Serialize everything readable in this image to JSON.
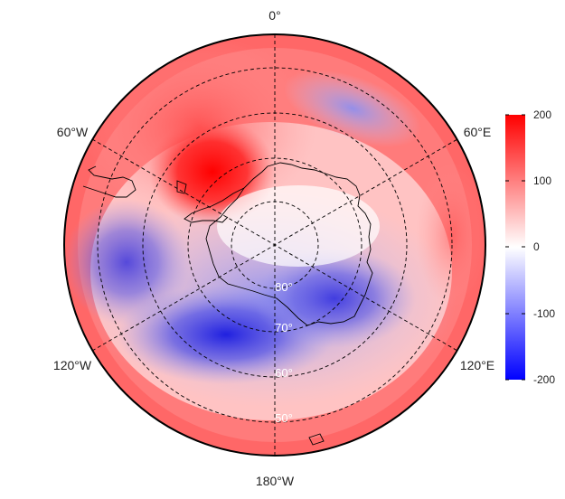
{
  "map": {
    "projection": "south-polar-stereographic",
    "longitude_labels": [
      "0°",
      "60°E",
      "120°E",
      "180°W",
      "120°W",
      "60°W"
    ],
    "latitude_labels": [
      "80°",
      "70°",
      "60°",
      "50°"
    ],
    "field_colors": {
      "low": "#0000ff",
      "mid": "#ffffff",
      "high": "#ff0000"
    },
    "coastline_color": "#000000",
    "graticule_style": "dashed"
  },
  "colorbar": {
    "ticks": [
      "200",
      "100",
      "0",
      "-100",
      "-200"
    ],
    "range": [
      -200,
      200
    ]
  }
}
